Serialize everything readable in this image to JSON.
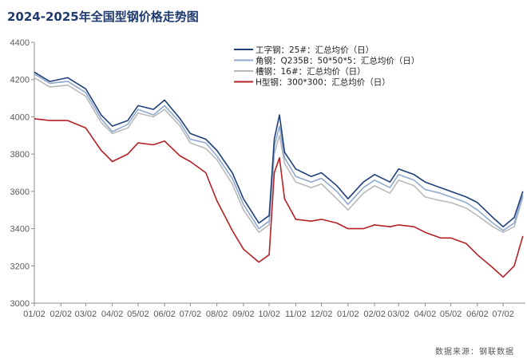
{
  "header": {
    "title": "2024-2025年全国型钢价格走势图",
    "source": "数据来源：钢联数据"
  },
  "colors": {
    "gong": "#1f3f7a",
    "jiao": "#8ea9cf",
    "cao": "#b9b9b9",
    "h": "#b51f26",
    "axis": "#8c8c8c"
  },
  "chart_data": {
    "type": "line",
    "title": "2024-2025年全国型钢价格走势图",
    "xlabel": "",
    "ylabel": "",
    "ylim": [
      3000,
      4400
    ],
    "yticks": [
      "3000",
      "3200",
      "3400",
      "3600",
      "3800",
      "4000",
      "4200",
      "4400"
    ],
    "xticks": [
      "01/02",
      "02/02",
      "03/02",
      "04/02",
      "05/02",
      "06/02",
      "07/02",
      "08/02",
      "09/02",
      "10/02",
      "11/02",
      "12/02",
      "01/02",
      "02/02",
      "03/02",
      "04/02",
      "05/02",
      "06/02",
      "07/02"
    ],
    "grid": false,
    "legend_position": "top-center",
    "x": [
      "2024-01-02",
      "2024-01-20",
      "2024-02-10",
      "2024-03-02",
      "2024-03-20",
      "2024-04-02",
      "2024-04-20",
      "2024-05-02",
      "2024-05-20",
      "2024-06-02",
      "2024-06-20",
      "2024-07-02",
      "2024-07-20",
      "2024-08-02",
      "2024-08-20",
      "2024-09-02",
      "2024-09-20",
      "2024-10-02",
      "2024-10-08",
      "2024-10-14",
      "2024-10-20",
      "2024-11-02",
      "2024-11-20",
      "2024-12-02",
      "2024-12-20",
      "2025-01-02",
      "2025-01-20",
      "2025-02-02",
      "2025-02-20",
      "2025-03-02",
      "2025-03-20",
      "2025-04-02",
      "2025-04-20",
      "2025-05-02",
      "2025-05-20",
      "2025-06-02",
      "2025-06-20",
      "2025-07-02",
      "2025-07-15",
      "2025-07-25"
    ],
    "series": [
      {
        "name": "工字钢：25#：汇总均价（日）",
        "color_key": "gong",
        "values": [
          4240,
          4190,
          4210,
          4150,
          4010,
          3950,
          3980,
          4060,
          4040,
          4090,
          3990,
          3910,
          3880,
          3820,
          3700,
          3560,
          3430,
          3470,
          3880,
          4010,
          3810,
          3720,
          3680,
          3700,
          3630,
          3560,
          3650,
          3690,
          3650,
          3720,
          3690,
          3650,
          3620,
          3600,
          3570,
          3540,
          3460,
          3410,
          3460,
          3600
        ]
      },
      {
        "name": "角钢：Q235B：50*50*5：汇总均价（日）",
        "color_key": "jiao",
        "values": [
          4230,
          4180,
          4190,
          4130,
          3990,
          3920,
          3960,
          4040,
          4010,
          4060,
          3970,
          3880,
          3860,
          3790,
          3670,
          3530,
          3400,
          3440,
          3840,
          3950,
          3780,
          3680,
          3650,
          3670,
          3600,
          3530,
          3620,
          3660,
          3620,
          3690,
          3660,
          3610,
          3590,
          3570,
          3540,
          3500,
          3430,
          3390,
          3430,
          3580
        ]
      },
      {
        "name": "槽钢：16#：汇总均价（日）",
        "color_key": "cao",
        "values": [
          4210,
          4160,
          4170,
          4110,
          3970,
          3910,
          3940,
          4020,
          4000,
          4040,
          3950,
          3860,
          3830,
          3770,
          3640,
          3500,
          3380,
          3420,
          3800,
          3900,
          3750,
          3650,
          3620,
          3640,
          3560,
          3500,
          3590,
          3630,
          3590,
          3660,
          3630,
          3570,
          3550,
          3540,
          3510,
          3470,
          3410,
          3380,
          3410,
          3570
        ]
      },
      {
        "name": "H型钢：300*300：汇总均价（日）",
        "color_key": "h",
        "values": [
          3990,
          3980,
          3980,
          3940,
          3820,
          3760,
          3800,
          3860,
          3850,
          3870,
          3790,
          3760,
          3700,
          3550,
          3390,
          3290,
          3220,
          3260,
          3700,
          3780,
          3560,
          3450,
          3440,
          3450,
          3430,
          3400,
          3400,
          3420,
          3410,
          3420,
          3410,
          3380,
          3350,
          3350,
          3320,
          3260,
          3190,
          3140,
          3200,
          3360
        ]
      }
    ]
  }
}
